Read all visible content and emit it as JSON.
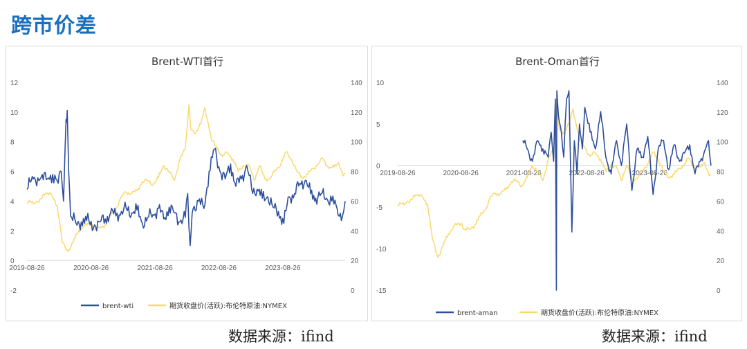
{
  "page": {
    "title": "跨市价差"
  },
  "sources": {
    "left": "数据来源：ifind",
    "right": "数据来源：ifind"
  },
  "colors": {
    "spread": "#2e4f9c",
    "price": "#fbd86a"
  },
  "chart_data": [
    {
      "type": "line",
      "title": "Brent-WTI首行",
      "x_tick_labels": [
        "2019-08-26",
        "2020-08-26",
        "2021-08-26",
        "2022-08-26",
        "2023-08-26"
      ],
      "x_range": [
        "2019-08-26",
        "2024-08-16"
      ],
      "y_left": {
        "min": -2,
        "max": 12,
        "ticks": [
          -2,
          0,
          2,
          4,
          6,
          8,
          10,
          12
        ]
      },
      "y_right": {
        "min": 0,
        "max": 140,
        "ticks": [
          0,
          20,
          40,
          60,
          80,
          100,
          120,
          140
        ]
      },
      "legend": [
        "brent-wti",
        "期货收盘价(活跃):布伦特原油:NYMEX"
      ],
      "legend_position": "bottom",
      "series": [
        {
          "name": "brent-wti",
          "axis": "left",
          "points": [
            [
              "2019-08-26",
              4.8
            ],
            [
              "2019-10-01",
              5.5
            ],
            [
              "2019-11-15",
              5.6
            ],
            [
              "2019-12-20",
              5.5
            ],
            [
              "2020-01-20",
              5.8
            ],
            [
              "2020-02-20",
              5.2
            ],
            [
              "2020-03-08",
              6.0
            ],
            [
              "2020-03-22",
              4.0
            ],
            [
              "2020-04-05",
              9.5
            ],
            [
              "2020-04-12",
              10.1
            ],
            [
              "2020-04-20",
              6.0
            ],
            [
              "2020-05-01",
              3.0
            ],
            [
              "2020-06-01",
              2.5
            ],
            [
              "2020-07-01",
              2.6
            ],
            [
              "2020-08-01",
              2.7
            ],
            [
              "2020-09-15",
              2.4
            ],
            [
              "2020-10-15",
              2.6
            ],
            [
              "2020-11-15",
              2.8
            ],
            [
              "2020-12-15",
              3.2
            ],
            [
              "2021-01-15",
              3.0
            ],
            [
              "2021-02-15",
              3.3
            ],
            [
              "2021-03-15",
              3.5
            ],
            [
              "2021-04-15",
              3.2
            ],
            [
              "2021-05-15",
              3.4
            ],
            [
              "2021-06-15",
              2.5
            ],
            [
              "2021-07-15",
              2.9
            ],
            [
              "2021-08-15",
              3.1
            ],
            [
              "2021-09-15",
              3.5
            ],
            [
              "2021-10-15",
              2.8
            ],
            [
              "2021-11-15",
              3.6
            ],
            [
              "2021-12-15",
              3.2
            ],
            [
              "2022-01-15",
              2.6
            ],
            [
              "2022-02-15",
              2.9
            ],
            [
              "2022-03-01",
              4.5
            ],
            [
              "2022-03-15",
              1.0
            ],
            [
              "2022-04-01",
              3.5
            ],
            [
              "2022-05-01",
              4.0
            ],
            [
              "2022-06-01",
              3.5
            ],
            [
              "2022-07-01",
              6.0
            ],
            [
              "2022-08-01",
              7.5
            ],
            [
              "2022-09-01",
              6.0
            ],
            [
              "2022-10-01",
              5.5
            ],
            [
              "2022-11-01",
              6.5
            ],
            [
              "2022-12-01",
              5.0
            ],
            [
              "2023-01-01",
              5.5
            ],
            [
              "2023-02-01",
              6.4
            ],
            [
              "2023-03-01",
              4.8
            ],
            [
              "2023-04-01",
              4.8
            ],
            [
              "2023-05-01",
              4.2
            ],
            [
              "2023-06-01",
              4.3
            ],
            [
              "2023-07-01",
              3.6
            ],
            [
              "2023-08-01",
              3.3
            ],
            [
              "2023-09-01",
              2.5
            ],
            [
              "2023-10-01",
              4.3
            ],
            [
              "2023-11-01",
              4.5
            ],
            [
              "2023-12-01",
              5.2
            ],
            [
              "2024-01-01",
              5.4
            ],
            [
              "2024-02-01",
              4.5
            ],
            [
              "2024-03-01",
              4.2
            ],
            [
              "2024-04-01",
              4.5
            ],
            [
              "2024-05-01",
              4.2
            ],
            [
              "2024-06-01",
              4.0
            ],
            [
              "2024-07-01",
              3.5
            ],
            [
              "2024-08-01",
              3.0
            ],
            [
              "2024-08-16",
              4.0
            ]
          ]
        },
        {
          "name": "期货收盘价(活跃):布伦特原油:NYMEX",
          "axis": "right",
          "points": [
            [
              "2019-08-26",
              59
            ],
            [
              "2019-10-15",
              59
            ],
            [
              "2019-12-15",
              65
            ],
            [
              "2020-01-15",
              64
            ],
            [
              "2020-02-15",
              57
            ],
            [
              "2020-03-15",
              32
            ],
            [
              "2020-04-15",
              26
            ],
            [
              "2020-05-15",
              32
            ],
            [
              "2020-06-15",
              40
            ],
            [
              "2020-07-15",
              43
            ],
            [
              "2020-08-26",
              45
            ],
            [
              "2020-09-15",
              41
            ],
            [
              "2020-10-15",
              42
            ],
            [
              "2020-11-15",
              44
            ],
            [
              "2020-12-15",
              50
            ],
            [
              "2021-01-15",
              55
            ],
            [
              "2021-02-15",
              63
            ],
            [
              "2021-03-15",
              66
            ],
            [
              "2021-04-15",
              65
            ],
            [
              "2021-05-15",
              67
            ],
            [
              "2021-06-15",
              73
            ],
            [
              "2021-07-15",
              74
            ],
            [
              "2021-08-15",
              71
            ],
            [
              "2021-09-15",
              76
            ],
            [
              "2021-10-15",
              84
            ],
            [
              "2021-11-15",
              80
            ],
            [
              "2021-12-15",
              74
            ],
            [
              "2022-01-15",
              88
            ],
            [
              "2022-02-15",
              95
            ],
            [
              "2022-03-08",
              125
            ],
            [
              "2022-03-20",
              108
            ],
            [
              "2022-04-15",
              106
            ],
            [
              "2022-05-15",
              112
            ],
            [
              "2022-06-08",
              123
            ],
            [
              "2022-07-15",
              101
            ],
            [
              "2022-08-15",
              96
            ],
            [
              "2022-09-15",
              90
            ],
            [
              "2022-10-15",
              93
            ],
            [
              "2022-11-15",
              88
            ],
            [
              "2022-12-15",
              80
            ],
            [
              "2023-01-15",
              84
            ],
            [
              "2023-02-15",
              84
            ],
            [
              "2023-03-15",
              74
            ],
            [
              "2023-04-15",
              84
            ],
            [
              "2023-05-15",
              75
            ],
            [
              "2023-06-15",
              75
            ],
            [
              "2023-07-15",
              81
            ],
            [
              "2023-08-15",
              85
            ],
            [
              "2023-09-15",
              93
            ],
            [
              "2023-10-15",
              88
            ],
            [
              "2023-11-15",
              80
            ],
            [
              "2023-12-15",
              76
            ],
            [
              "2024-01-15",
              78
            ],
            [
              "2024-02-15",
              82
            ],
            [
              "2024-03-15",
              85
            ],
            [
              "2024-04-10",
              89
            ],
            [
              "2024-05-15",
              82
            ],
            [
              "2024-06-15",
              83
            ],
            [
              "2024-07-10",
              86
            ],
            [
              "2024-08-05",
              77
            ],
            [
              "2024-08-16",
              79
            ]
          ]
        }
      ]
    },
    {
      "type": "line",
      "title": "Brent-Oman首行",
      "x_tick_labels": [
        "2019-08-26",
        "2020-08-26",
        "2021-08-26",
        "2022-08-26",
        "2023-08-26"
      ],
      "x_range": [
        "2019-08-26",
        "2024-08-16"
      ],
      "y_left": {
        "min": -15,
        "max": 10,
        "ticks": [
          -15,
          -10,
          -5,
          0,
          5,
          10
        ]
      },
      "y_right": {
        "min": 0,
        "max": 140,
        "ticks": [
          0,
          20,
          40,
          60,
          80,
          100,
          120,
          140
        ]
      },
      "legend": [
        "brent-aman",
        "期货收盘价(活跃):布伦特原油:NYMEX"
      ],
      "legend_position": "bottom",
      "series": [
        {
          "name": "brent-aman",
          "axis": "left",
          "points": [
            [
              "2021-08-20",
              3.0
            ],
            [
              "2021-09-15",
              2.0
            ],
            [
              "2021-10-15",
              0.5
            ],
            [
              "2021-11-15",
              3.0
            ],
            [
              "2021-12-15",
              2.0
            ],
            [
              "2022-01-15",
              1.0
            ],
            [
              "2022-02-01",
              4.0
            ],
            [
              "2022-02-15",
              0.5
            ],
            [
              "2022-02-25",
              8.0
            ],
            [
              "2022-03-01",
              -6.0
            ],
            [
              "2022-03-03",
              -15.0
            ],
            [
              "2022-03-06",
              9.0
            ],
            [
              "2022-03-15",
              6.0
            ],
            [
              "2022-04-01",
              4.0
            ],
            [
              "2022-04-15",
              1.0
            ],
            [
              "2022-05-01",
              8.0
            ],
            [
              "2022-05-15",
              9.0
            ],
            [
              "2022-06-01",
              -8.0
            ],
            [
              "2022-06-15",
              3.0
            ],
            [
              "2022-07-01",
              -1.0
            ],
            [
              "2022-07-15",
              5.0
            ],
            [
              "2022-08-01",
              2.0
            ],
            [
              "2022-08-15",
              7.0
            ],
            [
              "2022-09-15",
              4.0
            ],
            [
              "2022-10-15",
              2.0
            ],
            [
              "2022-11-15",
              6.5
            ],
            [
              "2022-12-15",
              1.0
            ],
            [
              "2023-01-15",
              -1.0
            ],
            [
              "2023-02-15",
              3.0
            ],
            [
              "2023-03-15",
              0.0
            ],
            [
              "2023-04-15",
              5.0
            ],
            [
              "2023-05-15",
              -3.0
            ],
            [
              "2023-06-15",
              2.0
            ],
            [
              "2023-07-15",
              1.0
            ],
            [
              "2023-08-15",
              3.5
            ],
            [
              "2023-09-15",
              -3.5
            ],
            [
              "2023-10-15",
              2.0
            ],
            [
              "2023-11-15",
              3.0
            ],
            [
              "2023-12-15",
              -0.5
            ],
            [
              "2024-01-15",
              2.5
            ],
            [
              "2024-02-15",
              0.5
            ],
            [
              "2024-03-15",
              1.5
            ],
            [
              "2024-04-15",
              2.5
            ],
            [
              "2024-05-15",
              -1.0
            ],
            [
              "2024-06-15",
              0.5
            ],
            [
              "2024-07-15",
              2.0
            ],
            [
              "2024-08-01",
              3.0
            ],
            [
              "2024-08-16",
              0.0
            ]
          ]
        },
        {
          "name": "期货收盘价(活跃):布伦特原油:NYMEX",
          "axis": "right",
          "points": [
            [
              "2019-08-26",
              57
            ],
            [
              "2019-10-15",
              59
            ],
            [
              "2019-12-15",
              64
            ],
            [
              "2020-01-15",
              63
            ],
            [
              "2020-02-15",
              58
            ],
            [
              "2020-03-15",
              34
            ],
            [
              "2020-04-15",
              22
            ],
            [
              "2020-05-15",
              30
            ],
            [
              "2020-06-15",
              38
            ],
            [
              "2020-07-15",
              43
            ],
            [
              "2020-08-26",
              45
            ],
            [
              "2020-09-15",
              41
            ],
            [
              "2020-10-15",
              41
            ],
            [
              "2020-11-15",
              44
            ],
            [
              "2020-12-15",
              50
            ],
            [
              "2021-01-15",
              54
            ],
            [
              "2021-02-15",
              63
            ],
            [
              "2021-03-15",
              65
            ],
            [
              "2021-04-15",
              65
            ],
            [
              "2021-05-15",
              68
            ],
            [
              "2021-06-15",
              73
            ],
            [
              "2021-07-15",
              74
            ],
            [
              "2021-08-15",
              70
            ],
            [
              "2021-09-15",
              76
            ],
            [
              "2021-10-15",
              84
            ],
            [
              "2021-11-15",
              80
            ],
            [
              "2021-12-15",
              74
            ],
            [
              "2022-01-15",
              88
            ],
            [
              "2022-02-15",
              95
            ],
            [
              "2022-03-08",
              130
            ],
            [
              "2022-03-20",
              108
            ],
            [
              "2022-04-15",
              106
            ],
            [
              "2022-05-15",
              112
            ],
            [
              "2022-06-08",
              122
            ],
            [
              "2022-07-15",
              101
            ],
            [
              "2022-08-15",
              96
            ],
            [
              "2022-09-15",
              90
            ],
            [
              "2022-10-15",
              93
            ],
            [
              "2022-11-15",
              88
            ],
            [
              "2022-12-15",
              80
            ],
            [
              "2023-01-15",
              84
            ],
            [
              "2023-02-15",
              83
            ],
            [
              "2023-03-15",
              74
            ],
            [
              "2023-04-15",
              84
            ],
            [
              "2023-05-15",
              75
            ],
            [
              "2023-06-15",
              75
            ],
            [
              "2023-07-15",
              81
            ],
            [
              "2023-08-15",
              85
            ],
            [
              "2023-09-15",
              93
            ],
            [
              "2023-10-15",
              88
            ],
            [
              "2023-11-15",
              80
            ],
            [
              "2023-12-15",
              76
            ],
            [
              "2024-01-15",
              78
            ],
            [
              "2024-02-15",
              82
            ],
            [
              "2024-03-15",
              85
            ],
            [
              "2024-04-10",
              89
            ],
            [
              "2024-05-15",
              82
            ],
            [
              "2024-06-15",
              83
            ],
            [
              "2024-07-10",
              86
            ],
            [
              "2024-08-05",
              77
            ],
            [
              "2024-08-16",
              78
            ]
          ]
        }
      ]
    }
  ]
}
